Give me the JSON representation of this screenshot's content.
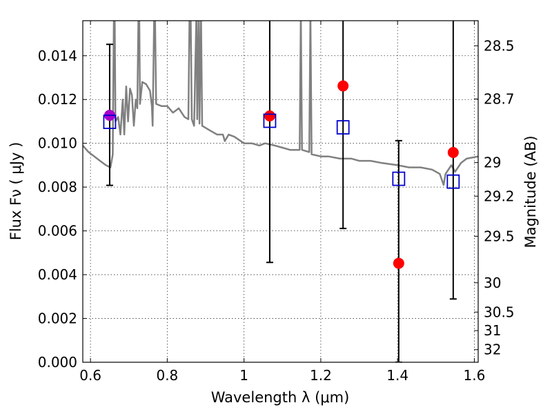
{
  "chart_data": {
    "type": "scatter",
    "title": "",
    "xlabel": "Wavelength  λ (μm)",
    "ylabel": "Flux  Fν  ( μJy )",
    "ylabel_right": "Magnitude (AB)",
    "xlim": [
      0.58,
      1.61
    ],
    "ylim": [
      0.0,
      0.0156
    ],
    "grid": true,
    "x_ticks": [
      {
        "value": 0.6,
        "label": "0.6"
      },
      {
        "value": 0.8,
        "label": "0.8"
      },
      {
        "value": 1.0,
        "label": "1"
      },
      {
        "value": 1.2,
        "label": "1.2"
      },
      {
        "value": 1.4,
        "label": "1.4"
      },
      {
        "value": 1.6,
        "label": "1.6"
      }
    ],
    "y_ticks": [
      {
        "value": 0.0,
        "label": "0.000"
      },
      {
        "value": 0.002,
        "label": "0.002"
      },
      {
        "value": 0.004,
        "label": "0.004"
      },
      {
        "value": 0.006,
        "label": "0.006"
      },
      {
        "value": 0.008,
        "label": "0.008"
      },
      {
        "value": 0.01,
        "label": "0.010"
      },
      {
        "value": 0.012,
        "label": "0.012"
      },
      {
        "value": 0.014,
        "label": "0.014"
      }
    ],
    "right_ticks": [
      {
        "value": 28.5,
        "label": "28.5"
      },
      {
        "value": 28.7,
        "label": "28.7"
      },
      {
        "value": 29.0,
        "label": "29"
      },
      {
        "value": 29.2,
        "label": "29.2"
      },
      {
        "value": 29.5,
        "label": "29.5"
      },
      {
        "value": 30.0,
        "label": "30"
      },
      {
        "value": 30.5,
        "label": "30.5"
      },
      {
        "value": 31.0,
        "label": "31"
      },
      {
        "value": 32.0,
        "label": "32"
      }
    ],
    "template": {
      "color": "#808080",
      "points": [
        [
          0.58,
          0.0099
        ],
        [
          0.595,
          0.0096
        ],
        [
          0.61,
          0.0094
        ],
        [
          0.625,
          0.0092
        ],
        [
          0.64,
          0.009
        ],
        [
          0.652,
          0.0089
        ],
        [
          0.658,
          0.0095
        ],
        [
          0.661,
          0.016
        ],
        [
          0.663,
          0.016
        ],
        [
          0.665,
          0.011
        ],
        [
          0.672,
          0.0112
        ],
        [
          0.678,
          0.0104
        ],
        [
          0.684,
          0.012
        ],
        [
          0.688,
          0.0104
        ],
        [
          0.693,
          0.0126
        ],
        [
          0.698,
          0.011
        ],
        [
          0.703,
          0.0125
        ],
        [
          0.708,
          0.0122
        ],
        [
          0.713,
          0.0108
        ],
        [
          0.718,
          0.012
        ],
        [
          0.722,
          0.0116
        ],
        [
          0.725,
          0.016
        ],
        [
          0.727,
          0.016
        ],
        [
          0.729,
          0.0118
        ],
        [
          0.735,
          0.0128
        ],
        [
          0.745,
          0.0127
        ],
        [
          0.755,
          0.0124
        ],
        [
          0.76,
          0.0117
        ],
        [
          0.762,
          0.0108
        ],
        [
          0.766,
          0.016
        ],
        [
          0.768,
          0.016
        ],
        [
          0.771,
          0.0118
        ],
        [
          0.785,
          0.0117
        ],
        [
          0.8,
          0.0117
        ],
        [
          0.815,
          0.0114
        ],
        [
          0.83,
          0.0116
        ],
        [
          0.845,
          0.0112
        ],
        [
          0.855,
          0.0111
        ],
        [
          0.858,
          0.016
        ],
        [
          0.861,
          0.016
        ],
        [
          0.864,
          0.0111
        ],
        [
          0.87,
          0.0108
        ],
        [
          0.876,
          0.016
        ],
        [
          0.878,
          0.0111
        ],
        [
          0.882,
          0.016
        ],
        [
          0.884,
          0.0109
        ],
        [
          0.888,
          0.016
        ],
        [
          0.891,
          0.0108
        ],
        [
          0.91,
          0.0106
        ],
        [
          0.93,
          0.0104
        ],
        [
          0.945,
          0.0104
        ],
        [
          0.95,
          0.0101
        ],
        [
          0.96,
          0.0104
        ],
        [
          0.975,
          0.0103
        ],
        [
          1.0,
          0.01
        ],
        [
          1.02,
          0.01
        ],
        [
          1.04,
          0.0099
        ],
        [
          1.055,
          0.01
        ],
        [
          1.08,
          0.0099
        ],
        [
          1.1,
          0.0098
        ],
        [
          1.12,
          0.0097
        ],
        [
          1.145,
          0.0097
        ],
        [
          1.148,
          0.016
        ],
        [
          1.151,
          0.0097
        ],
        [
          1.17,
          0.0096
        ],
        [
          1.173,
          0.016
        ],
        [
          1.176,
          0.0095
        ],
        [
          1.2,
          0.0094
        ],
        [
          1.22,
          0.0094
        ],
        [
          1.25,
          0.0093
        ],
        [
          1.28,
          0.0093
        ],
        [
          1.3,
          0.0092
        ],
        [
          1.33,
          0.0092
        ],
        [
          1.36,
          0.0091
        ],
        [
          1.4,
          0.009
        ],
        [
          1.43,
          0.0089
        ],
        [
          1.46,
          0.0089
        ],
        [
          1.49,
          0.0088
        ],
        [
          1.51,
          0.0086
        ],
        [
          1.52,
          0.0081
        ],
        [
          1.525,
          0.0086
        ],
        [
          1.54,
          0.009
        ],
        [
          1.55,
          0.0087
        ],
        [
          1.565,
          0.0091
        ],
        [
          1.58,
          0.0093
        ],
        [
          1.61,
          0.0094
        ]
      ]
    },
    "series": [
      {
        "marker": "circle",
        "color": "#ff0000",
        "points": [
          {
            "x": 1.067,
            "y": 0.01125
          },
          {
            "x": 1.258,
            "y": 0.01262
          },
          {
            "x": 1.403,
            "y": 0.00452
          },
          {
            "x": 1.545,
            "y": 0.00958
          }
        ]
      },
      {
        "marker": "circle",
        "color": "#aa00cc",
        "points": [
          {
            "x": 0.65,
            "y": 0.01128
          }
        ]
      },
      {
        "marker": "open-square",
        "color": "#0000cc",
        "points": [
          {
            "x": 0.65,
            "y": 0.01098
          },
          {
            "x": 1.067,
            "y": 0.01103
          },
          {
            "x": 1.258,
            "y": 0.01073
          },
          {
            "x": 1.403,
            "y": 0.00838
          },
          {
            "x": 1.545,
            "y": 0.00825
          }
        ]
      }
    ],
    "error_bars": [
      {
        "x": 0.65,
        "low": 0.00808,
        "high": 0.01452
      },
      {
        "x": 1.067,
        "low": 0.00456,
        "high": 0.016
      },
      {
        "x": 1.258,
        "low": 0.00611,
        "high": 0.016
      },
      {
        "x": 1.403,
        "low": 0.0,
        "high": 0.01012
      },
      {
        "x": 1.545,
        "low": 0.00289,
        "high": 0.016
      }
    ]
  }
}
